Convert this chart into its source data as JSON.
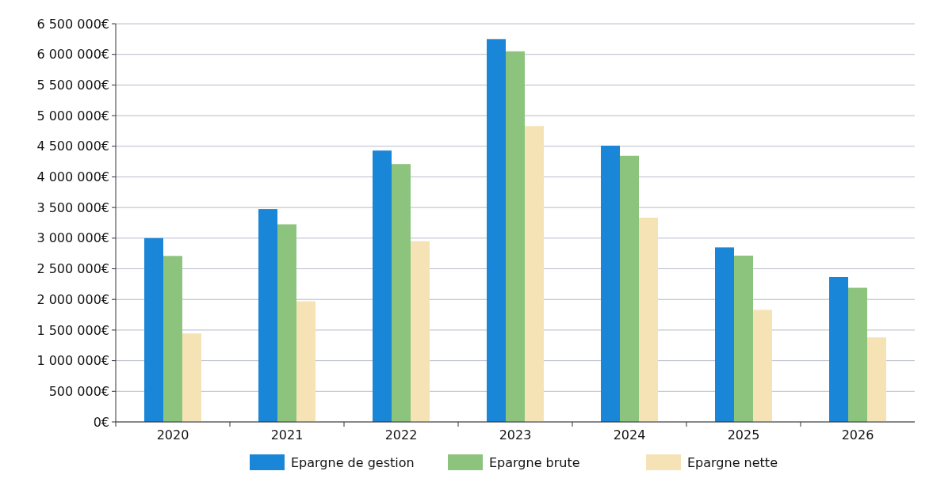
{
  "chart_data": {
    "type": "bar",
    "categories": [
      "2020",
      "2021",
      "2022",
      "2023",
      "2024",
      "2025",
      "2026"
    ],
    "series": [
      {
        "name": "Epargne de gestion",
        "color": "#1a86d8",
        "values": [
          3000000,
          3475000,
          4430000,
          6250000,
          4510000,
          2850000,
          2365000
        ]
      },
      {
        "name": "Epargne brute",
        "color": "#8cc47e",
        "values": [
          2710000,
          3225000,
          4210000,
          6050000,
          4345000,
          2715000,
          2190000
        ]
      },
      {
        "name": "Epargne nette",
        "color": "#f5e3b5",
        "values": [
          1445000,
          1970000,
          2950000,
          4830000,
          3335000,
          1830000,
          1380000
        ]
      }
    ],
    "ylim": [
      0,
      6500000
    ],
    "yticks": [
      {
        "value": 0,
        "label": "0€"
      },
      {
        "value": 500000,
        "label": "500 000€"
      },
      {
        "value": 1000000,
        "label": "1 000 000€"
      },
      {
        "value": 1500000,
        "label": "1 500 000€"
      },
      {
        "value": 2000000,
        "label": "2 000 000€"
      },
      {
        "value": 2500000,
        "label": "2 500 000€"
      },
      {
        "value": 3000000,
        "label": "3 000 000€"
      },
      {
        "value": 3500000,
        "label": "3 500 000€"
      },
      {
        "value": 4000000,
        "label": "4 000 000€"
      },
      {
        "value": 4500000,
        "label": "4 500 000€"
      },
      {
        "value": 5000000,
        "label": "5 000 000€"
      },
      {
        "value": 5500000,
        "label": "5 500 000€"
      },
      {
        "value": 6000000,
        "label": "6 000 000€"
      },
      {
        "value": 6500000,
        "label": "6 500 000€"
      }
    ],
    "grid": "y",
    "legend": "bottom"
  }
}
